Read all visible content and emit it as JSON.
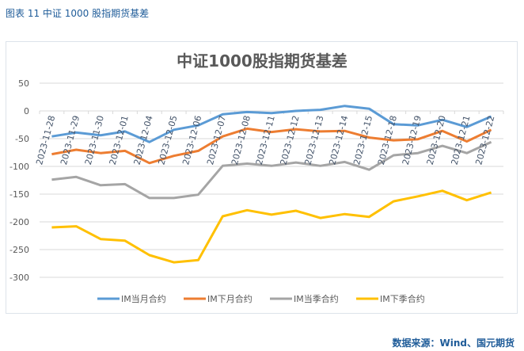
{
  "header": {
    "title": "图表 11  中证 1000 股指期货基差"
  },
  "footer": {
    "source": "数据来源：Wind、国元期货"
  },
  "chart_data": {
    "type": "line",
    "title": "中证1000股指期货基差",
    "xlabel": "",
    "ylabel": "",
    "ylim": [
      -300,
      50
    ],
    "yticks": [
      50,
      0,
      -50,
      -100,
      -150,
      -200,
      -250,
      -300
    ],
    "grid": true,
    "legend_position": "bottom",
    "categories": [
      "2023-11-28",
      "2023-11-29",
      "2023-11-30",
      "2023-12-01",
      "2023-12-04",
      "2023-12-05",
      "2023-12-06",
      "2023-12-07",
      "2023-12-08",
      "2023-12-11",
      "2023-12-12",
      "2023-12-13",
      "2023-12-14",
      "2023-12-15",
      "2023-12-18",
      "2023-12-19",
      "2023-12-20",
      "2023-12-21",
      "2023-12-22"
    ],
    "series": [
      {
        "name": "IM当月合约",
        "color": "#5b9bd5",
        "values": [
          -46,
          -39,
          -44,
          -37,
          -56,
          -34,
          -26,
          -6,
          -2,
          -4,
          0,
          2,
          9,
          4,
          -24,
          -26,
          -16,
          -29,
          -10
        ]
      },
      {
        "name": "IM下月合约",
        "color": "#ed7d31",
        "values": [
          -78,
          -70,
          -76,
          -72,
          -94,
          -81,
          -72,
          -46,
          -32,
          -38,
          -33,
          -37,
          -36,
          -48,
          -53,
          -51,
          -36,
          -55,
          -34
        ]
      },
      {
        "name": "IM当季合约",
        "color": "#a5a5a5",
        "values": [
          -124,
          -119,
          -134,
          -132,
          -157,
          -157,
          -151,
          -99,
          -95,
          -99,
          -93,
          -99,
          -92,
          -106,
          -80,
          -76,
          -63,
          -76,
          -56
        ]
      },
      {
        "name": "IM下季合约",
        "color": "#ffc000",
        "values": [
          -210,
          -208,
          -231,
          -234,
          -260,
          -273,
          -269,
          -190,
          -179,
          -187,
          -180,
          -193,
          -186,
          -191,
          -163,
          -154,
          -144,
          -161,
          -147
        ]
      }
    ]
  }
}
